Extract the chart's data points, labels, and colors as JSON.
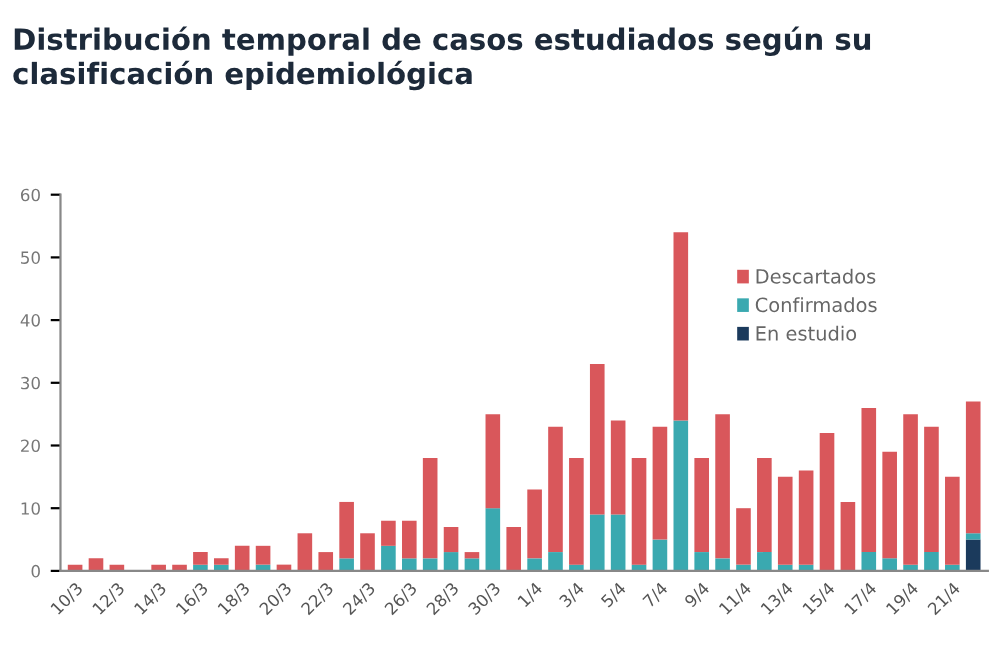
{
  "chart_data": {
    "type": "bar",
    "title": "Distribución temporal de casos estudiados según su\nclasificación epidemiológica",
    "categories": [
      "10/3",
      null,
      "12/3",
      null,
      "14/3",
      null,
      "16/3",
      null,
      "18/3",
      null,
      "20/3",
      null,
      "22/3",
      null,
      "24/3",
      null,
      "26/3",
      null,
      "28/3",
      null,
      "30/3",
      null,
      "1/4",
      null,
      "3/4",
      null,
      "5/4",
      null,
      "7/4",
      null,
      "9/4",
      null,
      "11/4",
      null,
      "13/4",
      null,
      "15/4",
      null,
      "17/4",
      null,
      "19/4",
      null,
      "21/4",
      null
    ],
    "stacked": true,
    "series": [
      {
        "name": "En estudio",
        "color": "#1b3a5c",
        "values": [
          0,
          0,
          0,
          0,
          0,
          0,
          0,
          0,
          0,
          0,
          0,
          0,
          0,
          0,
          0,
          0,
          0,
          0,
          0,
          0,
          0,
          0,
          0,
          0,
          0,
          0,
          0,
          0,
          0,
          0,
          0,
          0,
          0,
          0,
          0,
          0,
          0,
          0,
          0,
          0,
          0,
          0,
          0,
          5
        ]
      },
      {
        "name": "Confirmados",
        "color": "#3aa9b0",
        "values": [
          0,
          0,
          0,
          0,
          0,
          0,
          1,
          1,
          0,
          1,
          0,
          0,
          0,
          2,
          0,
          4,
          2,
          2,
          3,
          2,
          10,
          0,
          2,
          3,
          1,
          9,
          9,
          1,
          5,
          24,
          3,
          2,
          1,
          3,
          1,
          1,
          0,
          0,
          3,
          2,
          1,
          3,
          1,
          1
        ]
      },
      {
        "name": "Descartados",
        "color": "#d9575b",
        "values": [
          1,
          2,
          1,
          0,
          1,
          1,
          2,
          1,
          4,
          3,
          1,
          6,
          3,
          9,
          6,
          4,
          6,
          16,
          4,
          1,
          15,
          7,
          11,
          20,
          17,
          24,
          15,
          17,
          18,
          30,
          15,
          23,
          9,
          15,
          14,
          15,
          22,
          11,
          23,
          17,
          24,
          20,
          14,
          21
        ]
      }
    ],
    "ylim": [
      0,
      60
    ],
    "yticks": [
      0,
      10,
      20,
      30,
      40,
      50,
      60
    ],
    "grid": false,
    "legend": "top right"
  }
}
